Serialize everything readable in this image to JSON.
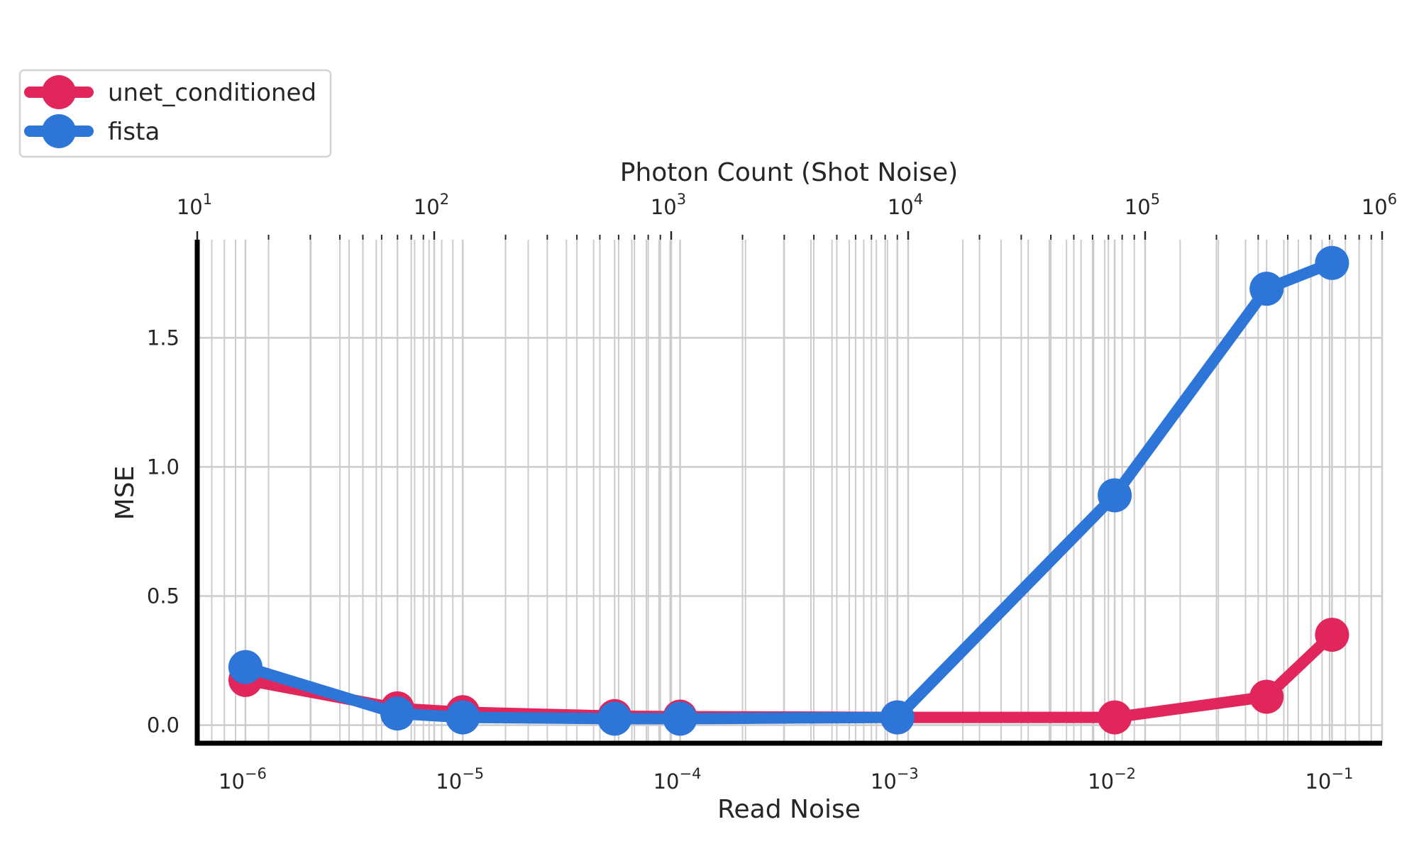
{
  "chart_data": {
    "type": "line",
    "xlabel": "Read Noise",
    "x2label": "Photon Count (Shot Noise)",
    "ylabel": "MSE",
    "x_scale": "log",
    "x2_scale": "log",
    "xlim": [
      6e-07,
      0.17
    ],
    "x2lim": [
      10,
      1000000
    ],
    "ylim": [
      -0.07,
      1.88
    ],
    "yticks": [
      0.0,
      0.5,
      1.0,
      1.5
    ],
    "ytick_labels": [
      "0.0",
      "0.5",
      "1.0",
      "1.5"
    ],
    "xtick_labels": [
      {
        "base": "10",
        "exp": "−6"
      },
      {
        "base": "10",
        "exp": "−5"
      },
      {
        "base": "10",
        "exp": "−4"
      },
      {
        "base": "10",
        "exp": "−3"
      },
      {
        "base": "10",
        "exp": "−2"
      },
      {
        "base": "10",
        "exp": "−1"
      }
    ],
    "x2tick_labels": [
      {
        "base": "10",
        "exp": "1"
      },
      {
        "base": "10",
        "exp": "2"
      },
      {
        "base": "10",
        "exp": "3"
      },
      {
        "base": "10",
        "exp": "4"
      },
      {
        "base": "10",
        "exp": "5"
      },
      {
        "base": "10",
        "exp": "6"
      }
    ],
    "grid": true,
    "legend_position": "top-left",
    "colors": {
      "unet_conditioned": "#e0265a",
      "fista": "#2e75d8",
      "grid": "#cccccc",
      "axis": "#000000"
    },
    "x": [
      1e-06,
      5e-06,
      1e-05,
      5e-05,
      0.0001,
      0.001,
      0.01,
      0.05,
      0.1
    ],
    "series": [
      {
        "name": "unet_conditioned",
        "values": [
          0.175,
          0.065,
          0.05,
          0.035,
          0.033,
          0.03,
          0.03,
          0.11,
          0.35
        ]
      },
      {
        "name": "fista",
        "values": [
          0.225,
          0.045,
          0.03,
          0.025,
          0.025,
          0.03,
          0.89,
          1.69,
          1.79
        ]
      }
    ]
  }
}
